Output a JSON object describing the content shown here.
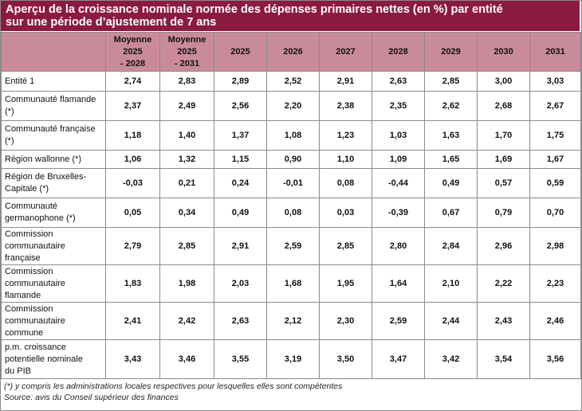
{
  "chart_data": {
    "type": "table",
    "title_lines": [
      "Aperçu de la croissance nominale normée des dépenses primaires nettes (en %) par entité",
      "sur une période d’ajustement de 7 ans"
    ],
    "columns": [
      {
        "lines": [
          "Moyenne",
          "2025",
          "- 2028"
        ]
      },
      {
        "lines": [
          "Moyenne",
          "2025",
          "- 2031"
        ]
      },
      {
        "lines": [
          "2025"
        ]
      },
      {
        "lines": [
          "2026"
        ]
      },
      {
        "lines": [
          "2027"
        ]
      },
      {
        "lines": [
          "2028"
        ]
      },
      {
        "lines": [
          "2029"
        ]
      },
      {
        "lines": [
          "2030"
        ]
      },
      {
        "lines": [
          "2031"
        ]
      }
    ],
    "rows": [
      {
        "label_lines": [
          "Entité 1"
        ],
        "values": [
          "2,74",
          "2,83",
          "2,89",
          "2,52",
          "2,91",
          "2,63",
          "2,85",
          "3,00",
          "3,03"
        ]
      },
      {
        "label_lines": [
          "Communauté flamande",
          "(*)"
        ],
        "values": [
          "2,37",
          "2,49",
          "2,56",
          "2,20",
          "2,38",
          "2,35",
          "2,62",
          "2,68",
          "2,67"
        ]
      },
      {
        "label_lines": [
          "Communauté française",
          "(*)"
        ],
        "values": [
          "1,18",
          "1,40",
          "1,37",
          "1,08",
          "1,23",
          "1,03",
          "1,63",
          "1,70",
          "1,75"
        ]
      },
      {
        "label_lines": [
          "Région wallonne (*)"
        ],
        "values": [
          "1,06",
          "1,32",
          "1,15",
          "0,90",
          "1,10",
          "1,09",
          "1,65",
          "1,69",
          "1,67"
        ]
      },
      {
        "label_lines": [
          "Région de Bruxelles-",
          "Capitale (*)"
        ],
        "values": [
          "-0,03",
          "0,21",
          "0,24",
          "-0,01",
          "0,08",
          "-0,44",
          "0,49",
          "0,57",
          "0,59"
        ]
      },
      {
        "label_lines": [
          "Communauté",
          "germanophone (*)"
        ],
        "values": [
          "0,05",
          "0,34",
          "0,49",
          "0,08",
          "0,03",
          "-0,39",
          "0,67",
          "0,79",
          "0,70"
        ]
      },
      {
        "label_lines": [
          "Commission",
          "communautaire",
          "française"
        ],
        "values": [
          "2,79",
          "2,85",
          "2,91",
          "2,59",
          "2,85",
          "2,80",
          "2,84",
          "2,96",
          "2,98"
        ]
      },
      {
        "label_lines": [
          "Commission",
          "communautaire",
          "flamande"
        ],
        "values": [
          "1,83",
          "1,98",
          "2,03",
          "1,68",
          "1,95",
          "1,64",
          "2,10",
          "2,22",
          "2,23"
        ]
      },
      {
        "label_lines": [
          "Commission",
          "communautaire",
          "commune"
        ],
        "values": [
          "2,41",
          "2,42",
          "2,63",
          "2,12",
          "2,30",
          "2,59",
          "2,44",
          "2,43",
          "2,46"
        ]
      },
      {
        "label_lines": [
          "p.m. croissance",
          "potentielle nominale",
          "du PIB"
        ],
        "values": [
          "3,43",
          "3,46",
          "3,55",
          "3,19",
          "3,50",
          "3,47",
          "3,42",
          "3,54",
          "3,56"
        ]
      }
    ],
    "footnotes": [
      "(*) y compris les administrations locales respectives pour lesquelles elles sont compétentes",
      "Source: avis du Conseil supérieur des finances"
    ]
  },
  "colors": {
    "title_background": "#8b1a3f",
    "header_background": "#c98b9c",
    "border": "#8a8a8a"
  }
}
